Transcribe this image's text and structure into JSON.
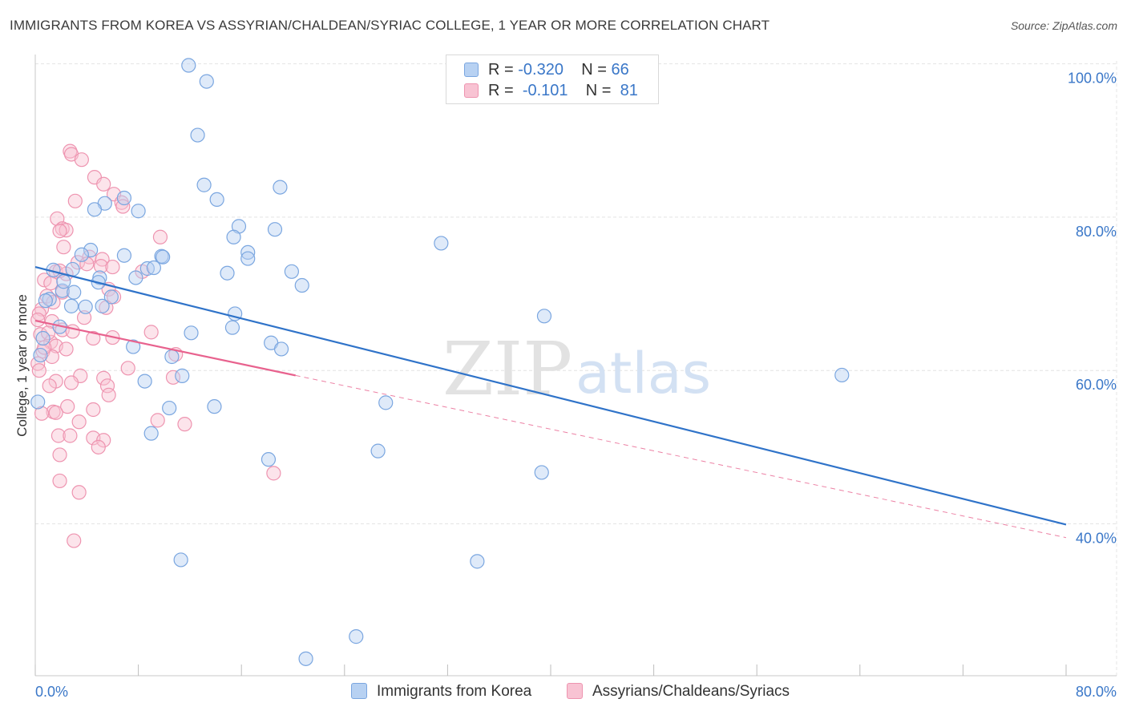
{
  "title": "IMMIGRANTS FROM KOREA VS ASSYRIAN/CHALDEAN/SYRIAC COLLEGE, 1 YEAR OR MORE CORRELATION CHART",
  "source": "Source: ZipAtlas.com",
  "watermark": {
    "zip": "ZIP",
    "atlas": "atlas"
  },
  "legend": {
    "r_label": "R =",
    "n_label": "N =",
    "series": [
      {
        "r": "-0.320",
        "n": "66",
        "fill": "#b7d1f2",
        "stroke": "#7aa6e0"
      },
      {
        "r": "-0.101",
        "n": "81",
        "fill": "#f8c3d3",
        "stroke": "#ee94b0"
      }
    ]
  },
  "bottom_legend": [
    "Immigrants from Korea",
    "Assyrians/Chaldeans/Syriacs"
  ],
  "colors": {
    "blue_fill": "#b7d1f2",
    "blue_stroke": "#7aa6e0",
    "blue_line": "#2f73c9",
    "pink_fill": "#f8c3d3",
    "pink_stroke": "#ee94b0",
    "pink_line": "#e8628e",
    "axis_text": "#3a77c8",
    "grid": "#e4e4e4"
  },
  "chart_data": {
    "type": "scatter",
    "title": "IMMIGRANTS FROM KOREA VS ASSYRIAN/CHALDEAN/SYRIAC COLLEGE, 1 YEAR OR MORE CORRELATION CHART",
    "xlabel": "",
    "ylabel": "College, 1 year or more",
    "xlim": [
      0,
      80
    ],
    "ylim": [
      20,
      103
    ],
    "x_tick_labels": [
      "0.0%",
      "80.0%"
    ],
    "y_ticks": [
      40,
      60,
      80,
      100
    ],
    "y_tick_labels": [
      "40.0%",
      "60.0%",
      "80.0%",
      "100.0%"
    ],
    "grid": true,
    "series": [
      {
        "name": "Immigrants from Korea",
        "r": -0.32,
        "n": 66,
        "trend": {
          "x0": 0,
          "y0": 73.5,
          "x1": 80,
          "y1": 39.9,
          "solid_to": 80
        },
        "points": [
          [
            11.9,
            99.8
          ],
          [
            13.3,
            97.7
          ],
          [
            12.6,
            90.7
          ],
          [
            13.1,
            84.2
          ],
          [
            19.0,
            83.9
          ],
          [
            14.1,
            82.3
          ],
          [
            6.9,
            82.5
          ],
          [
            5.4,
            81.8
          ],
          [
            4.6,
            81.0
          ],
          [
            8.0,
            80.8
          ],
          [
            15.8,
            78.8
          ],
          [
            18.6,
            78.4
          ],
          [
            15.4,
            77.4
          ],
          [
            31.5,
            76.6
          ],
          [
            4.3,
            75.7
          ],
          [
            16.5,
            75.4
          ],
          [
            3.6,
            75.1
          ],
          [
            6.9,
            75.0
          ],
          [
            9.8,
            74.9
          ],
          [
            9.9,
            74.8
          ],
          [
            16.5,
            74.6
          ],
          [
            2.9,
            73.2
          ],
          [
            1.4,
            73.1
          ],
          [
            8.7,
            73.3
          ],
          [
            9.2,
            73.4
          ],
          [
            19.9,
            72.9
          ],
          [
            14.9,
            72.7
          ],
          [
            5.0,
            72.1
          ],
          [
            7.8,
            72.1
          ],
          [
            4.9,
            71.5
          ],
          [
            20.7,
            71.1
          ],
          [
            2.1,
            70.4
          ],
          [
            3.0,
            70.2
          ],
          [
            5.9,
            69.6
          ],
          [
            1.1,
            69.3
          ],
          [
            0.8,
            69.1
          ],
          [
            5.2,
            68.4
          ],
          [
            2.8,
            68.4
          ],
          [
            3.9,
            68.3
          ],
          [
            15.5,
            67.4
          ],
          [
            39.5,
            67.1
          ],
          [
            15.3,
            65.6
          ],
          [
            1.9,
            65.7
          ],
          [
            12.1,
            64.9
          ],
          [
            18.3,
            63.6
          ],
          [
            7.6,
            63.1
          ],
          [
            19.1,
            62.8
          ],
          [
            10.6,
            61.8
          ],
          [
            11.4,
            59.3
          ],
          [
            62.6,
            59.4
          ],
          [
            8.5,
            58.6
          ],
          [
            27.2,
            55.8
          ],
          [
            13.9,
            55.3
          ],
          [
            10.4,
            55.1
          ],
          [
            0.2,
            55.9
          ],
          [
            9.0,
            51.8
          ],
          [
            26.6,
            49.5
          ],
          [
            18.1,
            48.4
          ],
          [
            39.3,
            46.7
          ],
          [
            11.3,
            35.3
          ],
          [
            34.3,
            35.1
          ],
          [
            24.9,
            25.3
          ],
          [
            21.0,
            22.4
          ],
          [
            0.4,
            62.0
          ],
          [
            0.6,
            64.2
          ],
          [
            2.2,
            71.6
          ]
        ]
      },
      {
        "name": "Assyrians/Chaldeans/Syriacs",
        "r": -0.101,
        "n": 81,
        "trend": {
          "x0": 0,
          "y0": 66.5,
          "x1": 80,
          "y1": 38.2,
          "solid_to": 20.2
        },
        "points": [
          [
            2.7,
            88.6
          ],
          [
            2.8,
            88.2
          ],
          [
            3.6,
            87.5
          ],
          [
            4.6,
            85.2
          ],
          [
            5.3,
            84.3
          ],
          [
            6.1,
            83.0
          ],
          [
            3.1,
            82.1
          ],
          [
            6.7,
            81.9
          ],
          [
            6.8,
            81.4
          ],
          [
            1.7,
            79.8
          ],
          [
            2.1,
            78.5
          ],
          [
            2.4,
            78.3
          ],
          [
            1.9,
            78.2
          ],
          [
            9.7,
            77.4
          ],
          [
            2.2,
            76.1
          ],
          [
            4.2,
            74.8
          ],
          [
            5.2,
            74.5
          ],
          [
            3.3,
            74.1
          ],
          [
            4.0,
            73.9
          ],
          [
            5.1,
            73.6
          ],
          [
            6.0,
            73.5
          ],
          [
            1.6,
            72.9
          ],
          [
            2.4,
            72.6
          ],
          [
            0.7,
            71.8
          ],
          [
            1.2,
            71.4
          ],
          [
            5.7,
            70.6
          ],
          [
            2.1,
            70.2
          ],
          [
            0.9,
            69.7
          ],
          [
            6.1,
            69.6
          ],
          [
            1.4,
            68.9
          ],
          [
            0.5,
            68.0
          ],
          [
            5.5,
            68.2
          ],
          [
            0.3,
            67.4
          ],
          [
            0.2,
            66.6
          ],
          [
            1.3,
            66.4
          ],
          [
            2.1,
            65.3
          ],
          [
            2.9,
            65.1
          ],
          [
            9.0,
            65.0
          ],
          [
            0.4,
            64.7
          ],
          [
            6.0,
            64.3
          ],
          [
            4.5,
            64.2
          ],
          [
            1.2,
            63.7
          ],
          [
            1.6,
            63.2
          ],
          [
            2.4,
            62.8
          ],
          [
            0.6,
            62.5
          ],
          [
            10.9,
            62.1
          ],
          [
            1.3,
            61.8
          ],
          [
            0.2,
            60.9
          ],
          [
            3.5,
            59.3
          ],
          [
            5.3,
            59.0
          ],
          [
            10.7,
            59.1
          ],
          [
            1.6,
            58.6
          ],
          [
            2.8,
            58.4
          ],
          [
            1.1,
            58.0
          ],
          [
            5.6,
            58.0
          ],
          [
            5.7,
            56.8
          ],
          [
            2.5,
            55.3
          ],
          [
            4.5,
            54.9
          ],
          [
            1.4,
            54.6
          ],
          [
            1.6,
            54.5
          ],
          [
            0.5,
            54.4
          ],
          [
            9.5,
            53.5
          ],
          [
            3.4,
            53.3
          ],
          [
            11.6,
            53.0
          ],
          [
            1.8,
            51.5
          ],
          [
            2.7,
            51.5
          ],
          [
            4.5,
            51.2
          ],
          [
            5.3,
            50.9
          ],
          [
            4.9,
            50.0
          ],
          [
            1.9,
            49.0
          ],
          [
            18.5,
            46.6
          ],
          [
            1.9,
            45.6
          ],
          [
            3.4,
            44.1
          ],
          [
            3.0,
            37.8
          ],
          [
            7.2,
            60.3
          ],
          [
            8.3,
            72.9
          ],
          [
            3.8,
            66.9
          ],
          [
            1.0,
            64.9
          ],
          [
            0.7,
            63.0
          ],
          [
            0.3,
            60.0
          ],
          [
            1.9,
            73.0
          ]
        ]
      }
    ]
  }
}
